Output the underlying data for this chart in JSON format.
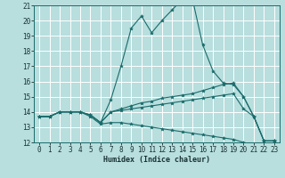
{
  "xlabel": "Humidex (Indice chaleur)",
  "bg_color": "#b8dede",
  "grid_color": "#ffffff",
  "line_color": "#1a6b6b",
  "xlim": [
    -0.5,
    23.5
  ],
  "ylim": [
    12,
    21
  ],
  "yticks": [
    12,
    13,
    14,
    15,
    16,
    17,
    18,
    19,
    20,
    21
  ],
  "xticks": [
    0,
    1,
    2,
    3,
    4,
    5,
    6,
    7,
    8,
    9,
    10,
    11,
    12,
    13,
    14,
    15,
    16,
    17,
    18,
    19,
    20,
    21,
    22,
    23
  ],
  "curves": [
    [
      13.7,
      13.7,
      14.0,
      14.0,
      14.0,
      13.8,
      13.3,
      14.8,
      17.0,
      19.5,
      20.3,
      19.2,
      20.0,
      20.7,
      21.4,
      21.4,
      18.4,
      16.7,
      15.9,
      15.8,
      15.0,
      13.7,
      12.1,
      12.1
    ],
    [
      13.7,
      13.7,
      14.0,
      14.0,
      14.0,
      13.8,
      13.3,
      14.0,
      14.2,
      14.4,
      14.6,
      14.7,
      14.9,
      15.0,
      15.1,
      15.2,
      15.4,
      15.6,
      15.8,
      15.9,
      15.0,
      13.7,
      12.1,
      12.1
    ],
    [
      13.7,
      13.7,
      14.0,
      14.0,
      14.0,
      13.8,
      13.3,
      14.0,
      14.1,
      14.2,
      14.3,
      14.4,
      14.5,
      14.6,
      14.7,
      14.8,
      14.9,
      15.0,
      15.1,
      15.2,
      14.2,
      13.7,
      12.1,
      12.1
    ],
    [
      13.7,
      13.7,
      14.0,
      14.0,
      14.0,
      13.7,
      13.2,
      13.3,
      13.3,
      13.2,
      13.1,
      13.0,
      12.9,
      12.8,
      12.7,
      12.6,
      12.5,
      12.4,
      12.3,
      12.2,
      12.0,
      11.8,
      11.7,
      12.0
    ]
  ],
  "xlabel_fontsize": 6.0,
  "tick_fontsize": 5.5
}
